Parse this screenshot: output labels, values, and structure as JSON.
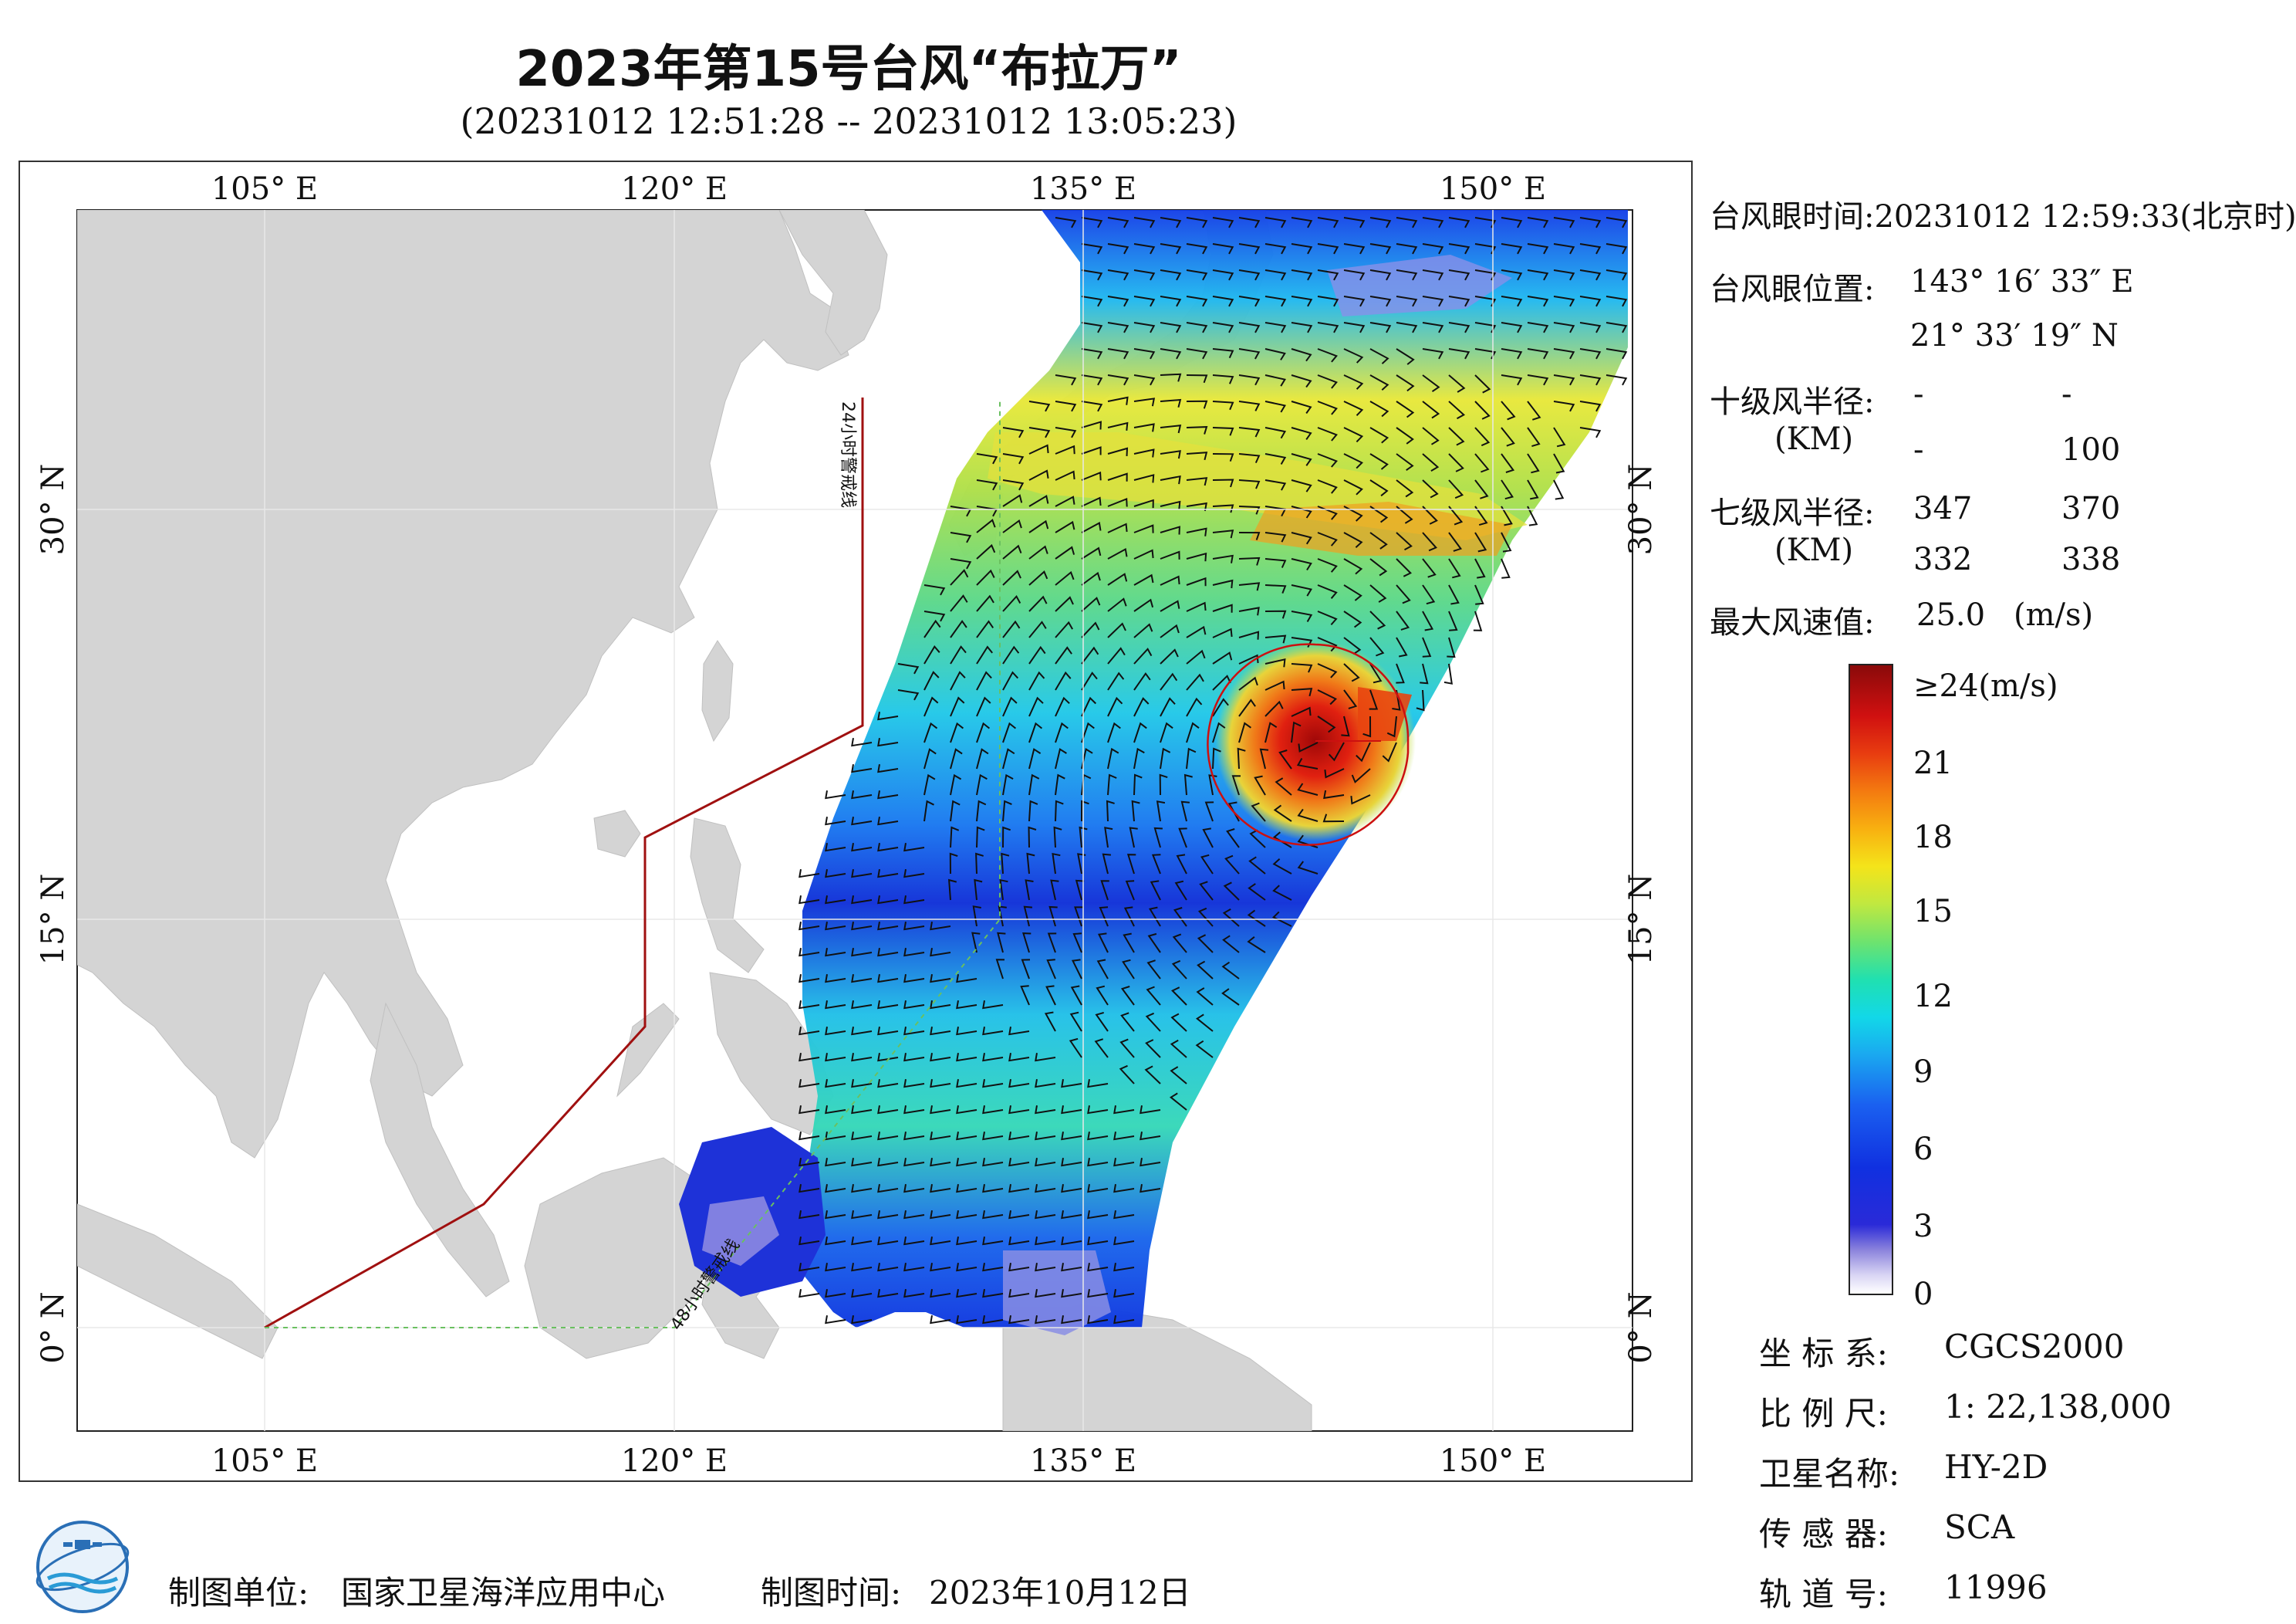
{
  "title": "2023年第15号台风“布拉万”",
  "subtitle": "(20231012 12:51:28 -- 20231012 13:05:23)",
  "map": {
    "lon_range": [
      98,
      155
    ],
    "lat_range": [
      -4,
      41
    ],
    "lon_ticks": [
      "105° E",
      "120° E",
      "135° E",
      "150° E"
    ],
    "lat_ticks": [
      "30° N",
      "15° N",
      "0° N"
    ],
    "warning_line_24h_label": "24小时警戒线",
    "warning_line_48h_label": "48小时警戒线",
    "land_color": "#d4d4d4",
    "ocean_color": "#ffffff",
    "eye_lon": 143.276,
    "eye_lat": 21.555
  },
  "panel": {
    "eye_time_label": "台风眼时间:",
    "eye_time_value": "20231012 12:59:33(北京时)",
    "eye_pos_label": "台风眼位置:",
    "eye_lon": "143° 16′ 33″ E",
    "eye_lat": "21° 33′ 19″ N",
    "r10_label": "十级风半径:",
    "r10_unit": "(KM)",
    "r10_values": [
      "-",
      "-",
      "-",
      "100"
    ],
    "r7_label": "七级风半径:",
    "r7_unit": "(KM)",
    "r7_values": [
      "347",
      "370",
      "332",
      "338"
    ],
    "max_wind_label": "最大风速值:",
    "max_wind_value": "25.0",
    "max_wind_unit": "(m/s)"
  },
  "colorbar": {
    "labels": [
      "≥24(m/s)",
      "21",
      "18",
      "15",
      "12",
      "9",
      "6",
      "3",
      "0"
    ]
  },
  "info": {
    "crs_label": "坐 标 系:",
    "crs_value": "CGCS2000",
    "scale_label": "比 例 尺:",
    "scale_value": "1: 22,138,000",
    "satellite_label": "卫星名称:",
    "satellite_value": "HY-2D",
    "sensor_label": "传 感 器:",
    "sensor_value": "SCA",
    "orbit_label": "轨 道 号:",
    "orbit_value": "11996"
  },
  "footer": {
    "unit_label": "制图单位:",
    "unit_value": "国家卫星海洋应用中心",
    "time_label": "制图时间:",
    "time_value": "2023年10月12日"
  }
}
